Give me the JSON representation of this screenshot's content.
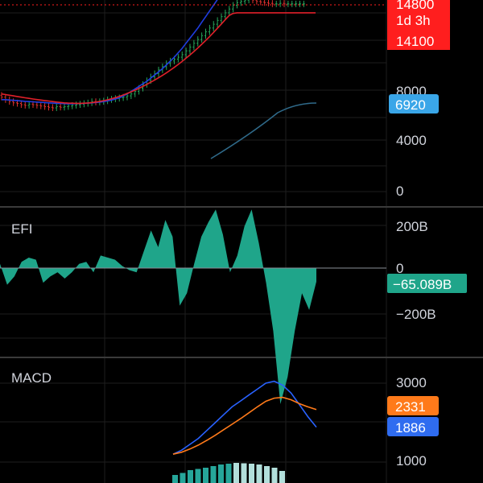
{
  "colors": {
    "background": "#000000",
    "grid": "#1e1e1e",
    "separator": "#3a3a3a",
    "axis_text": "#d1d4dc",
    "up": "#26a65b",
    "down": "#e0302e",
    "ma_fast": "#1f3de0",
    "ma_slow": "#e0202a",
    "volume_ma": "#2f6a8a",
    "efi": "#1fa58a",
    "macd": "#2962ff",
    "signal": "#ff7a1a",
    "price_badge": "#ff1e1e",
    "volume_badge": "#3aa6e8",
    "efi_badge": "#1fa58a",
    "macd_badge": "#2f6cf0",
    "signal_badge": "#ff7a1a"
  },
  "price_pane": {
    "axis_ticks": [
      "8000",
      "4000",
      "0"
    ],
    "badges": {
      "last_price": "14800",
      "countdown": "1d 3h",
      "ma_value": "14100",
      "volume_ma_value": "6920"
    }
  },
  "efi_pane": {
    "title": "EFI",
    "axis_ticks": [
      "200B",
      "0",
      "−200B"
    ],
    "value_badge": "−65.089B"
  },
  "macd_pane": {
    "title": "MACD",
    "axis_ticks": [
      "3000",
      "1000"
    ],
    "signal_badge": "2331",
    "macd_badge": "1886"
  },
  "chart_data": {
    "type": "line",
    "x": [
      0,
      1,
      2,
      3,
      4,
      5,
      6,
      7,
      8,
      9,
      10,
      11,
      12,
      13,
      14,
      15,
      16,
      17,
      18,
      19,
      20,
      21,
      22,
      23,
      24,
      25,
      26,
      27,
      28,
      29,
      30,
      31,
      32,
      33,
      34,
      35,
      36,
      37,
      38,
      39,
      40,
      41,
      42,
      43,
      44,
      45,
      46,
      47,
      48,
      49,
      50,
      51,
      52,
      53,
      54,
      55,
      56,
      57,
      58,
      59,
      60,
      61,
      62,
      63,
      64,
      65,
      66,
      67,
      68,
      69,
      70,
      71,
      72,
      73,
      74,
      75,
      76,
      77,
      78,
      79,
      80
    ],
    "series": [
      {
        "role": "price",
        "values": [
          7600,
          7450,
          7250,
          7100,
          7000,
          6950,
          6850,
          6800,
          6900,
          6850,
          6800,
          6750,
          6700,
          6650,
          6600,
          6700,
          6650,
          6700,
          6750,
          6800,
          6850,
          6900,
          6950,
          7000,
          7100,
          7050,
          7100,
          7150,
          7250,
          7300,
          7350,
          7400,
          7450,
          7550,
          7700,
          7900,
          8150,
          8450,
          8750,
          9050,
          9300,
          9600,
          9850,
          10100,
          10300,
          10450,
          10600,
          10800,
          11100,
          11400,
          11700,
          12000,
          12300,
          12600,
          12900,
          13200,
          13500,
          13800,
          14100,
          14400,
          14700,
          14900,
          15000,
          15100,
          15200,
          15100,
          15000,
          14950,
          14900,
          14850,
          14800,
          14800,
          14850,
          14800,
          14800,
          14800,
          14800,
          14800,
          14800,
          14800,
          14800
        ]
      },
      {
        "role": "ma_fast",
        "values": [
          7250,
          7250,
          7220,
          7200,
          7180,
          7150,
          7120,
          7100,
          7080,
          7060,
          7040,
          7020,
          7000,
          6980,
          6960,
          6950,
          6940,
          6930,
          6930,
          6940,
          6950,
          6960,
          6980,
          7000,
          7030,
          7060,
          7100,
          7150,
          7220,
          7300,
          7400,
          7550,
          7700,
          7900,
          8100,
          8300,
          8500,
          8700,
          8950,
          9200,
          9450,
          9700,
          10000,
          10300,
          10600,
          10950,
          11300,
          11700,
          12100,
          12500,
          12900,
          13350,
          13800,
          14250,
          14700,
          15150,
          15600,
          16050,
          16500,
          16900,
          17200,
          17500,
          17800,
          18000,
          18200,
          18400,
          18500,
          18600,
          18650,
          18700,
          18750,
          18800,
          18800,
          18800,
          18800,
          18800,
          18800,
          18800,
          18800,
          18800,
          18800
        ]
      },
      {
        "role": "ma_slow",
        "values": [
          7700,
          7650,
          7600,
          7550,
          7500,
          7450,
          7400,
          7350,
          7300,
          7260,
          7220,
          7180,
          7140,
          7100,
          7060,
          7030,
          7000,
          6980,
          6970,
          6960,
          6960,
          6970,
          6990,
          7020,
          7060,
          7110,
          7170,
          7240,
          7320,
          7410,
          7510,
          7620,
          7740,
          7870,
          8000,
          8150,
          8300,
          8460,
          8630,
          8800,
          8980,
          9170,
          9370,
          9580,
          9800,
          10030,
          10270,
          10520,
          10780,
          11050,
          11330,
          11620,
          11920,
          12230,
          12550,
          12880,
          13220,
          13570,
          13900,
          14050,
          14100,
          14100,
          14100,
          14100,
          14100,
          14100,
          14100,
          14100,
          14100,
          14100,
          14100,
          14100,
          14100,
          14100,
          14100,
          14100,
          14100,
          14100,
          14100,
          14100,
          14100
        ]
      }
    ],
    "efi_values": [
      20,
      -80,
      -40,
      30,
      50,
      40,
      -70,
      -40,
      -20,
      -50,
      -20,
      20,
      30,
      -20,
      60,
      50,
      40,
      10,
      -10,
      -20,
      80,
      180,
      100,
      230,
      150,
      -180,
      -120,
      20,
      150,
      220,
      280,
      160,
      -20,
      60,
      200,
      280,
      120,
      -70,
      -300,
      -650,
      -520,
      -300,
      -120,
      -200,
      -65
    ],
    "macd_values": [
      1200,
      1300,
      1450,
      1600,
      1800,
      2000,
      2200,
      2400,
      2550,
      2700,
      2850,
      3000,
      3050,
      2950,
      2750,
      2450,
      2150,
      1886
    ],
    "signal_values": [
      1200,
      1250,
      1330,
      1430,
      1550,
      1680,
      1820,
      1960,
      2100,
      2250,
      2400,
      2540,
      2620,
      2640,
      2580,
      2480,
      2400,
      2331
    ],
    "macd_histogram": [
      200,
      250,
      320,
      350,
      380,
      420,
      460,
      480,
      500,
      490,
      480,
      460,
      420,
      380,
      300
    ],
    "price_axis_ticks": [
      0,
      4000,
      8000
    ],
    "efi_axis_ticks": [
      -200,
      0,
      200
    ],
    "macd_axis_ticks": [
      1000,
      3000
    ]
  }
}
